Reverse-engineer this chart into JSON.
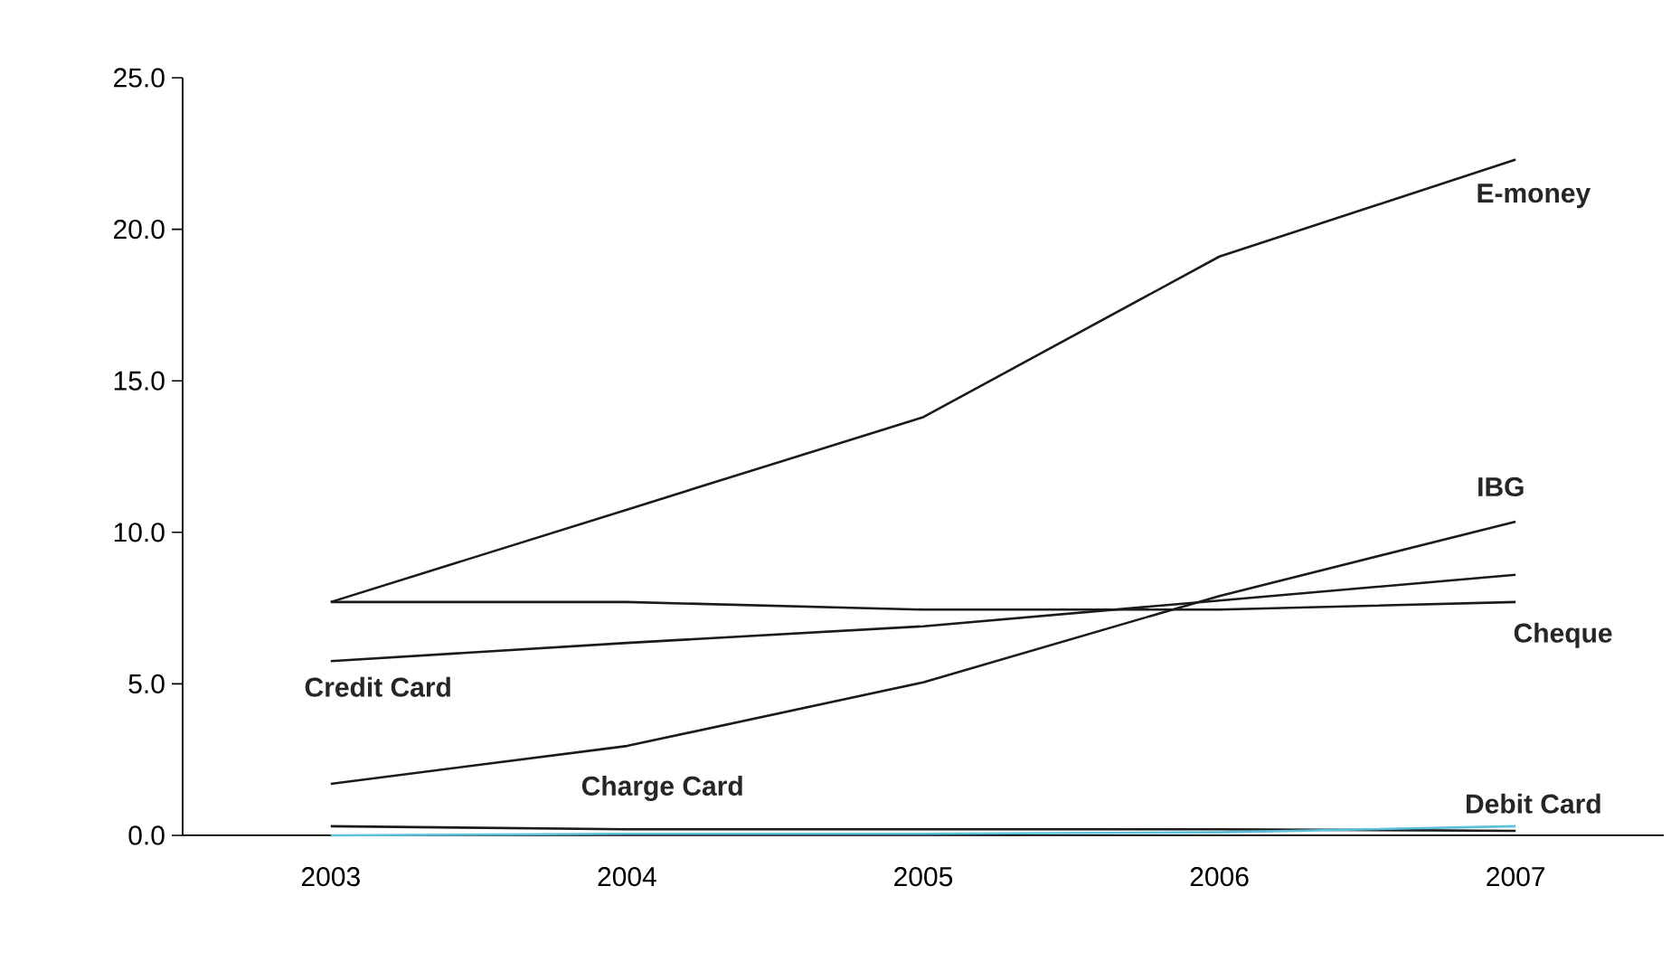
{
  "chart_data": {
    "type": "line",
    "categories": [
      "2003",
      "2004",
      "2005",
      "2006",
      "2007"
    ],
    "series": [
      {
        "name": "E-money",
        "color": "#1a1a1a",
        "values": [
          7.7,
          10.75,
          13.8,
          19.1,
          22.3
        ]
      },
      {
        "name": "IBG",
        "color": "#1a1a1a",
        "values": [
          1.7,
          2.95,
          5.05,
          7.9,
          10.35
        ]
      },
      {
        "name": "Cheque",
        "color": "#1a1a1a",
        "values": [
          7.7,
          7.7,
          7.45,
          7.45,
          7.7
        ]
      },
      {
        "name": "Credit Card",
        "color": "#1a1a1a",
        "values": [
          5.75,
          6.35,
          6.9,
          7.75,
          8.6
        ]
      },
      {
        "name": "Charge Card",
        "color": "#1a1a1a",
        "values": [
          0.3,
          0.2,
          0.2,
          0.2,
          0.15
        ]
      },
      {
        "name": "Debit Card",
        "color": "#5bc0d8",
        "values": [
          0.0,
          0.05,
          0.05,
          0.1,
          0.3
        ]
      }
    ],
    "ylim": [
      0,
      25
    ],
    "yticks": [
      {
        "value": 0,
        "label": "0.0"
      },
      {
        "value": 5,
        "label": "5.0"
      },
      {
        "value": 10,
        "label": "10.0"
      },
      {
        "value": 15,
        "label": "15.0"
      },
      {
        "value": 20,
        "label": "20.0"
      },
      {
        "value": 25,
        "label": "25.0"
      }
    ],
    "grid": false,
    "legend": false,
    "marker": "none",
    "line_style": "solid"
  }
}
